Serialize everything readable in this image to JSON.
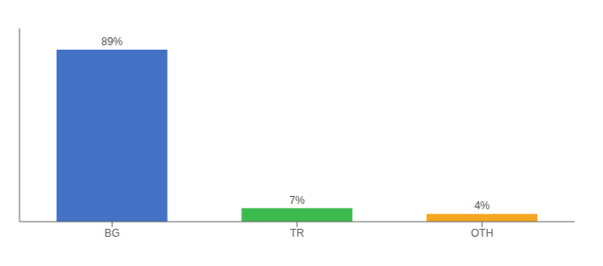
{
  "chart_data": {
    "type": "bar",
    "categories": [
      "BG",
      "TR",
      "OTH"
    ],
    "values": [
      89,
      7,
      4
    ],
    "value_labels": [
      "89%",
      "7%",
      "4%"
    ],
    "colors": [
      "#4472c4",
      "#3dba4e",
      "#f5a623"
    ],
    "ylim": [
      0,
      100
    ],
    "data_labels": true,
    "tick_labels": "x",
    "grid": false
  }
}
